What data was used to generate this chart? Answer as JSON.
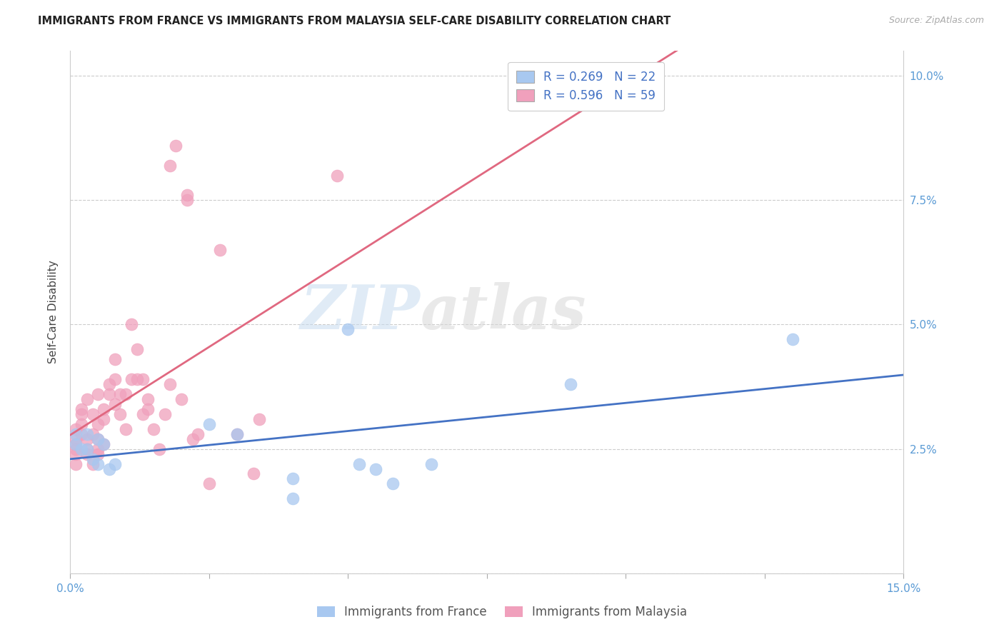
{
  "title": "IMMIGRANTS FROM FRANCE VS IMMIGRANTS FROM MALAYSIA SELF-CARE DISABILITY CORRELATION CHART",
  "source": "Source: ZipAtlas.com",
  "ylabel": "Self-Care Disability",
  "xlim": [
    0.0,
    0.15
  ],
  "ylim": [
    0.0,
    0.105
  ],
  "color_france": "#A8C8F0",
  "color_malaysia": "#F0A0BC",
  "color_france_line": "#4472C4",
  "color_malaysia_line": "#E06880",
  "color_axis": "#5B9BD5",
  "color_grid": "#cccccc",
  "legend_france_r": "R = 0.269",
  "legend_france_n": "N = 22",
  "legend_malaysia_r": "R = 0.596",
  "legend_malaysia_n": "N = 59",
  "watermark_zip": "ZIP",
  "watermark_atlas": "atlas",
  "france_x": [
    0.001,
    0.001,
    0.002,
    0.003,
    0.003,
    0.004,
    0.005,
    0.005,
    0.006,
    0.007,
    0.008,
    0.025,
    0.03,
    0.04,
    0.04,
    0.05,
    0.052,
    0.055,
    0.058,
    0.065,
    0.09,
    0.13
  ],
  "france_y": [
    0.028,
    0.026,
    0.025,
    0.025,
    0.028,
    0.023,
    0.022,
    0.027,
    0.026,
    0.021,
    0.022,
    0.03,
    0.028,
    0.019,
    0.015,
    0.049,
    0.022,
    0.021,
    0.018,
    0.022,
    0.038,
    0.047
  ],
  "malaysia_x": [
    0.001,
    0.001,
    0.001,
    0.001,
    0.001,
    0.001,
    0.002,
    0.002,
    0.002,
    0.002,
    0.003,
    0.003,
    0.003,
    0.003,
    0.004,
    0.004,
    0.004,
    0.005,
    0.005,
    0.005,
    0.005,
    0.005,
    0.006,
    0.006,
    0.006,
    0.007,
    0.007,
    0.008,
    0.008,
    0.008,
    0.009,
    0.009,
    0.01,
    0.01,
    0.011,
    0.011,
    0.012,
    0.012,
    0.013,
    0.013,
    0.014,
    0.014,
    0.015,
    0.016,
    0.017,
    0.018,
    0.018,
    0.019,
    0.02,
    0.021,
    0.021,
    0.022,
    0.023,
    0.025,
    0.027,
    0.03,
    0.033,
    0.034,
    0.048
  ],
  "malaysia_y": [
    0.027,
    0.022,
    0.024,
    0.026,
    0.029,
    0.025,
    0.033,
    0.028,
    0.03,
    0.032,
    0.025,
    0.027,
    0.035,
    0.024,
    0.022,
    0.032,
    0.028,
    0.025,
    0.024,
    0.027,
    0.036,
    0.03,
    0.026,
    0.031,
    0.033,
    0.038,
    0.036,
    0.034,
    0.039,
    0.043,
    0.032,
    0.036,
    0.036,
    0.029,
    0.039,
    0.05,
    0.039,
    0.045,
    0.032,
    0.039,
    0.035,
    0.033,
    0.029,
    0.025,
    0.032,
    0.038,
    0.082,
    0.086,
    0.035,
    0.075,
    0.076,
    0.027,
    0.028,
    0.018,
    0.065,
    0.028,
    0.02,
    0.031,
    0.08
  ]
}
